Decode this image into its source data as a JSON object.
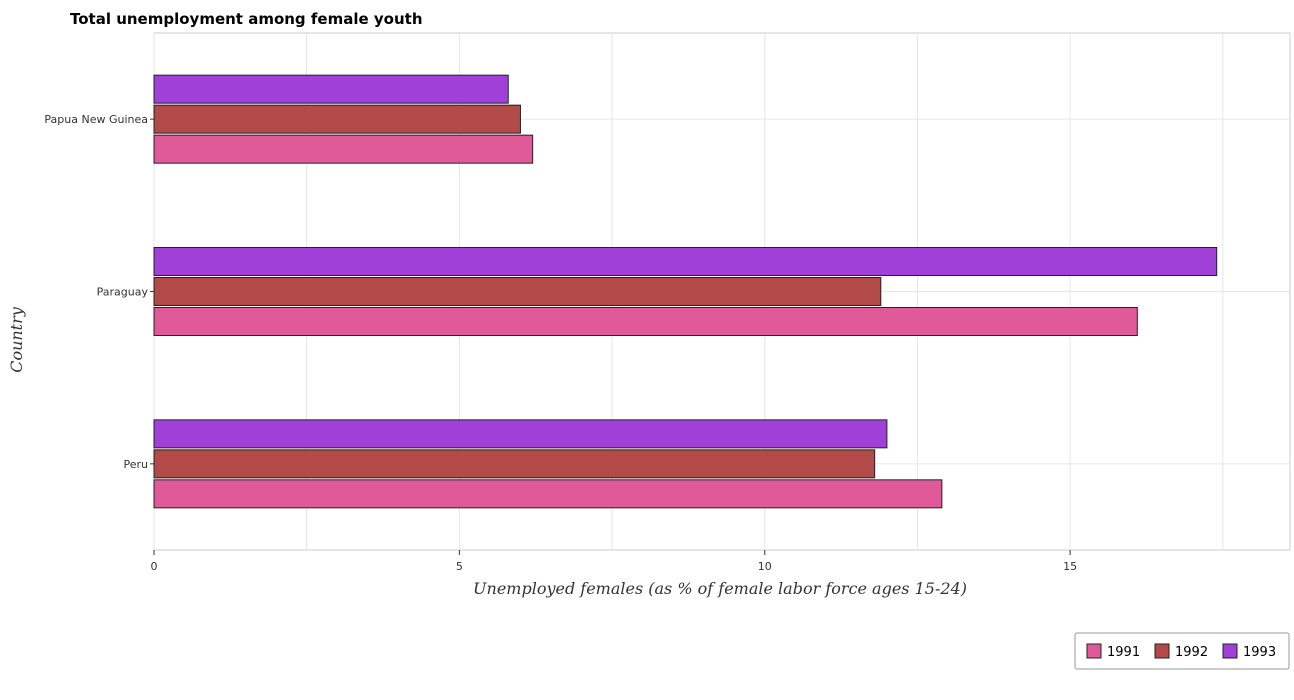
{
  "chart_data": {
    "type": "bar",
    "orientation": "horizontal",
    "title": "Total unemployment among female youth",
    "xlabel": "Unemployed females (as % of female labor force ages 15-24)",
    "ylabel": "Country",
    "categories": [
      "Papua New Guinea",
      "Paraguay",
      "Peru"
    ],
    "series": [
      {
        "name": "1991",
        "color": "#e05a9a",
        "values": [
          6.2,
          16.1,
          12.9
        ]
      },
      {
        "name": "1992",
        "color": "#b24a4a",
        "values": [
          6.0,
          11.9,
          11.8
        ]
      },
      {
        "name": "1993",
        "color": "#a040d8",
        "values": [
          5.8,
          17.4,
          12.0
        ]
      }
    ],
    "xlim": [
      0,
      18.6
    ],
    "xticks": [
      0,
      5,
      10,
      15
    ],
    "xtick_labels": [
      "0",
      "5",
      "10",
      "15"
    ],
    "grid": true,
    "legend_position": "bottom-right"
  }
}
